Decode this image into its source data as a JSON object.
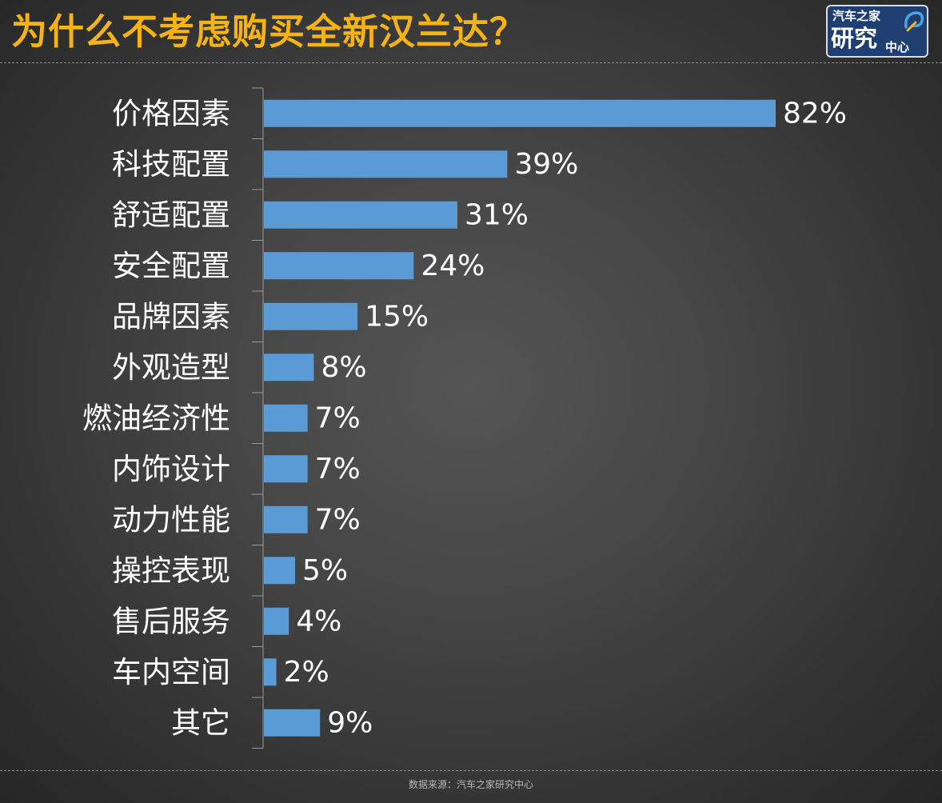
{
  "header": {
    "title": "为什么不考虑购买全新汉兰达？"
  },
  "logo": {
    "line1": "汽车之家",
    "line2_big": "研究",
    "line2_small": "中心",
    "accent_color": "#f6b314"
  },
  "footer": {
    "source": "数据来源：汽车之家研究中心"
  },
  "chart_data": {
    "type": "bar",
    "orientation": "horizontal",
    "title": "为什么不考虑购买全新汉兰达？",
    "categories": [
      "价格因素",
      "科技配置",
      "舒适配置",
      "安全配置",
      "品牌因素",
      "外观造型",
      "燃油经济性",
      "内饰设计",
      "动力性能",
      "操控表现",
      "售后服务",
      "车内空间",
      "其它"
    ],
    "values": [
      82,
      39,
      31,
      24,
      15,
      8,
      7,
      7,
      7,
      5,
      4,
      2,
      9
    ],
    "data_labels": [
      "82%",
      "39%",
      "31%",
      "24%",
      "15%",
      "8%",
      "7%",
      "7%",
      "7%",
      "5%",
      "4%",
      "2%",
      "9%"
    ],
    "unit": "%",
    "xlim": [
      0,
      100
    ],
    "grid": false,
    "legend": "none",
    "bar_color": "#5b9bd5"
  }
}
